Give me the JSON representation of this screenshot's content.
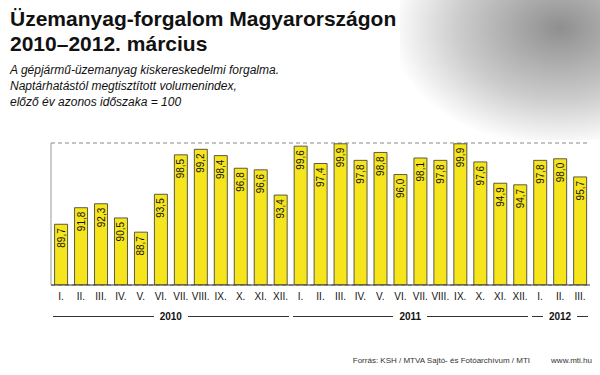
{
  "chart_data": {
    "type": "bar",
    "title": "Üzemanyag-forgalom Magyarországon",
    "subtitle": "2010–2012. március",
    "description": [
      "A gépjármű-üzemanyag kiskereskedelmi forgalma.",
      "Naptárhatástól megtisztított volumenindex,",
      "előző év azonos időszaka = 100"
    ],
    "source": "Forrás: KSH / MTVA Sajtó- és Fotóarchívum / MTI",
    "website": "www.mti.hu",
    "categories": [
      "I.",
      "II.",
      "III.",
      "IV.",
      "V.",
      "VI.",
      "VII.",
      "VIII.",
      "IX.",
      "X.",
      "XI.",
      "XII.",
      "I.",
      "II.",
      "III.",
      "IV.",
      "V.",
      "VI.",
      "VII.",
      "VIII.",
      "IX.",
      "X.",
      "XI.",
      "XII.",
      "I.",
      "II.",
      "III."
    ],
    "year_labels": [
      "2010",
      "2011",
      "2012"
    ],
    "values": [
      89.7,
      91.8,
      92.3,
      90.5,
      88.7,
      93.5,
      98.5,
      99.2,
      98.4,
      96.8,
      96.6,
      93.4,
      99.6,
      97.4,
      99.9,
      97.8,
      98.8,
      96.0,
      98.1,
      97.8,
      99.9,
      97.6,
      94.9,
      94.7,
      97.8,
      98.0,
      95.7
    ],
    "value_labels": [
      "89,7",
      "91,8",
      "92,3",
      "90,5",
      "88,7",
      "93,5",
      "98,5",
      "99,2",
      "98,4",
      "96,8",
      "96,6",
      "93,4",
      "99,6",
      "97,4",
      "99,9",
      "97,8",
      "98,8",
      "96,0",
      "98,1",
      "97,8",
      "99,9",
      "97,6",
      "94,9",
      "94,7",
      "97,8",
      "98,0",
      "95,7"
    ],
    "color": "#f6e51c",
    "ylim": [
      82,
      100
    ],
    "yticks": [
      82,
      100
    ],
    "grid": true,
    "data_labels": true,
    "tick_labels": "x"
  }
}
